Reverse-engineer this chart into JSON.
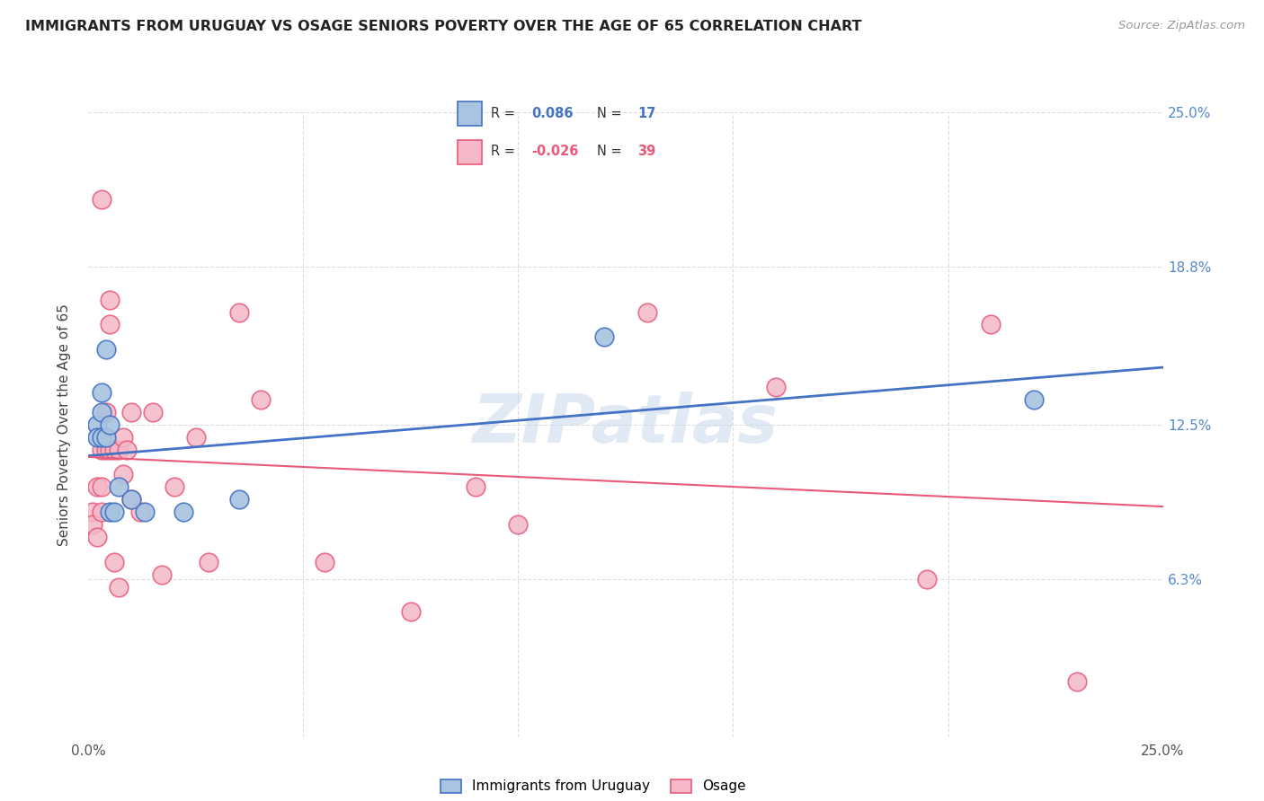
{
  "title": "IMMIGRANTS FROM URUGUAY VS OSAGE SENIORS POVERTY OVER THE AGE OF 65 CORRELATION CHART",
  "source": "Source: ZipAtlas.com",
  "ylabel": "Seniors Poverty Over the Age of 65",
  "xlim": [
    0.0,
    0.25
  ],
  "ylim": [
    0.0,
    0.25
  ],
  "ytick_positions": [
    0.063,
    0.125,
    0.188,
    0.25
  ],
  "ytick_labels": [
    "6.3%",
    "12.5%",
    "18.8%",
    "25.0%"
  ],
  "xtick_positions": [
    0.0,
    0.05,
    0.1,
    0.15,
    0.2,
    0.25
  ],
  "xtick_labels": [
    "0.0%",
    "",
    "",
    "",
    "",
    "25.0%"
  ],
  "grid_color": "#dddddd",
  "background_color": "#ffffff",
  "watermark": "ZIPatlas",
  "legend1_label": "Immigrants from Uruguay",
  "legend2_label": "Osage",
  "R1_text": "R =",
  "R1_val": " 0.086",
  "N1_text": "N =",
  "N1_val": " 17",
  "R2_text": "R =",
  "R2_val": "-0.026",
  "N2_text": "N =",
  "N2_val": " 39",
  "blue_line_color": "#4472c4",
  "pink_line_color": "#e85a7a",
  "blue_dot_facecolor": "#a8c4e0",
  "blue_dot_edgecolor": "#4472c4",
  "pink_dot_facecolor": "#f4b8c8",
  "pink_dot_edgecolor": "#e85a7a",
  "legend_color_blue": "#4472c4",
  "legend_color_pink": "#e85a7a",
  "blue_x": [
    0.002,
    0.002,
    0.003,
    0.003,
    0.003,
    0.004,
    0.004,
    0.005,
    0.005,
    0.006,
    0.007,
    0.01,
    0.013,
    0.022,
    0.035,
    0.22,
    0.12
  ],
  "blue_y": [
    0.125,
    0.12,
    0.138,
    0.13,
    0.12,
    0.155,
    0.12,
    0.125,
    0.09,
    0.09,
    0.1,
    0.095,
    0.09,
    0.09,
    0.095,
    0.135,
    0.16
  ],
  "pink_x": [
    0.003,
    0.001,
    0.001,
    0.002,
    0.002,
    0.003,
    0.003,
    0.003,
    0.004,
    0.004,
    0.005,
    0.005,
    0.005,
    0.006,
    0.006,
    0.007,
    0.007,
    0.008,
    0.008,
    0.009,
    0.01,
    0.01,
    0.012,
    0.015,
    0.017,
    0.02,
    0.025,
    0.028,
    0.035,
    0.04,
    0.055,
    0.075,
    0.09,
    0.1,
    0.13,
    0.16,
    0.195,
    0.21,
    0.23
  ],
  "pink_y": [
    0.215,
    0.09,
    0.085,
    0.1,
    0.08,
    0.115,
    0.1,
    0.09,
    0.13,
    0.115,
    0.175,
    0.165,
    0.115,
    0.115,
    0.07,
    0.06,
    0.115,
    0.12,
    0.105,
    0.115,
    0.13,
    0.095,
    0.09,
    0.13,
    0.065,
    0.1,
    0.12,
    0.07,
    0.17,
    0.135,
    0.07,
    0.05,
    0.1,
    0.085,
    0.17,
    0.14,
    0.063,
    0.165,
    0.022
  ]
}
